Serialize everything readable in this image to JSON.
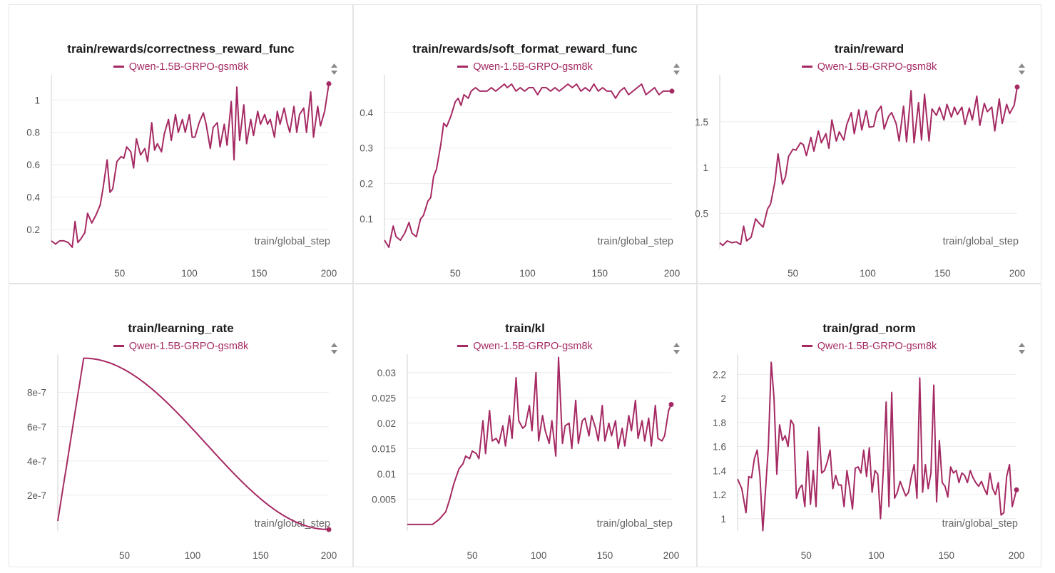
{
  "colors": {
    "series": "#a52a63",
    "grid": "#ececec",
    "border": "#e4e4e4"
  },
  "chart_data": [
    {
      "type": "line",
      "title": "train/rewards/correctness_reward_func",
      "legend": "Qwen-1.5B-GRPO-gsm8k",
      "xlabel": "train/global_step",
      "xlim": [
        1,
        200
      ],
      "ylim": [
        0.09,
        1.12
      ],
      "xticks": [
        50,
        100,
        150,
        200
      ],
      "xtick_labels": [
        "50",
        "100",
        "150",
        "200"
      ],
      "yticks": [
        0.2,
        0.4,
        0.6,
        0.8,
        1.0
      ],
      "ytick_labels": [
        "0.2",
        "0.4",
        "0.6",
        "0.8",
        "1"
      ],
      "x": [
        1,
        4,
        7,
        10,
        13,
        16,
        18,
        20,
        22,
        25,
        27,
        30,
        33,
        36,
        38,
        41,
        43,
        45,
        48,
        51,
        53,
        55,
        58,
        60,
        62,
        65,
        68,
        70,
        73,
        75,
        77,
        80,
        82,
        85,
        87,
        90,
        92,
        95,
        97,
        100,
        102,
        104,
        107,
        110,
        112,
        115,
        117,
        120,
        122,
        125,
        127,
        130,
        132,
        134,
        136,
        139,
        141,
        144,
        146,
        149,
        151,
        154,
        156,
        158,
        161,
        163,
        165,
        168,
        170,
        172,
        175,
        177,
        179,
        182,
        184,
        187,
        189,
        192,
        194,
        197,
        200
      ],
      "y": [
        0.13,
        0.11,
        0.13,
        0.13,
        0.12,
        0.09,
        0.25,
        0.12,
        0.14,
        0.18,
        0.3,
        0.24,
        0.29,
        0.35,
        0.45,
        0.63,
        0.43,
        0.45,
        0.62,
        0.65,
        0.64,
        0.71,
        0.68,
        0.58,
        0.76,
        0.66,
        0.7,
        0.62,
        0.86,
        0.69,
        0.73,
        0.68,
        0.79,
        0.88,
        0.75,
        0.91,
        0.8,
        0.88,
        0.8,
        0.91,
        0.77,
        0.77,
        0.86,
        0.92,
        0.85,
        0.7,
        0.83,
        0.86,
        0.71,
        0.85,
        0.72,
        0.99,
        0.63,
        1.08,
        0.75,
        0.97,
        0.73,
        0.88,
        0.78,
        0.93,
        0.85,
        0.91,
        0.85,
        0.88,
        0.77,
        0.93,
        0.85,
        0.95,
        0.86,
        0.8,
        0.96,
        0.8,
        0.91,
        0.95,
        0.8,
        1.05,
        0.77,
        0.96,
        0.84,
        0.93,
        1.1
      ]
    },
    {
      "type": "line",
      "title": "train/rewards/soft_format_reward_func",
      "legend": "Qwen-1.5B-GRPO-gsm8k",
      "xlabel": "train/global_step",
      "xlim": [
        1,
        200
      ],
      "ylim": [
        0.02,
        0.49
      ],
      "xticks": [
        50,
        100,
        150,
        200
      ],
      "xtick_labels": [
        "50",
        "100",
        "150",
        "200"
      ],
      "yticks": [
        0.1,
        0.2,
        0.3,
        0.4
      ],
      "ytick_labels": [
        "0.1",
        "0.2",
        "0.3",
        "0.4"
      ],
      "x": [
        1,
        4,
        7,
        9,
        12,
        15,
        18,
        20,
        23,
        26,
        28,
        31,
        33,
        35,
        37,
        40,
        42,
        44,
        47,
        50,
        52,
        54,
        56,
        59,
        61,
        64,
        67,
        69,
        72,
        75,
        78,
        81,
        84,
        86,
        89,
        92,
        95,
        98,
        101,
        104,
        107,
        110,
        113,
        116,
        119,
        122,
        125,
        128,
        131,
        134,
        137,
        140,
        143,
        146,
        149,
        152,
        155,
        158,
        161,
        164,
        167,
        170,
        173,
        176,
        179,
        182,
        185,
        188,
        191,
        194,
        197,
        200
      ],
      "y": [
        0.04,
        0.02,
        0.08,
        0.05,
        0.04,
        0.06,
        0.09,
        0.06,
        0.05,
        0.1,
        0.11,
        0.15,
        0.16,
        0.22,
        0.24,
        0.31,
        0.37,
        0.36,
        0.39,
        0.43,
        0.44,
        0.42,
        0.45,
        0.44,
        0.46,
        0.47,
        0.46,
        0.46,
        0.46,
        0.47,
        0.46,
        0.47,
        0.48,
        0.47,
        0.48,
        0.46,
        0.47,
        0.46,
        0.47,
        0.47,
        0.45,
        0.47,
        0.47,
        0.46,
        0.47,
        0.46,
        0.47,
        0.48,
        0.47,
        0.48,
        0.46,
        0.47,
        0.46,
        0.48,
        0.46,
        0.47,
        0.46,
        0.46,
        0.44,
        0.46,
        0.47,
        0.45,
        0.46,
        0.47,
        0.48,
        0.45,
        0.46,
        0.47,
        0.45,
        0.46,
        0.46,
        0.46
      ]
    },
    {
      "type": "line",
      "title": "train/reward",
      "legend": "Qwen-1.5B-GRPO-gsm8k",
      "xlabel": "train/global_step",
      "xlim": [
        1,
        200
      ],
      "ylim": [
        0.13,
        1.95
      ],
      "xticks": [
        50,
        100,
        150,
        200
      ],
      "xtick_labels": [
        "50",
        "100",
        "150",
        "200"
      ],
      "yticks": [
        0.5,
        1.0,
        1.5
      ],
      "ytick_labels": [
        "0.5",
        "1",
        "1.5"
      ],
      "x": [
        1,
        3,
        6,
        9,
        12,
        15,
        17,
        19,
        22,
        25,
        27,
        30,
        33,
        35,
        38,
        40,
        43,
        45,
        47,
        50,
        52,
        55,
        57,
        59,
        62,
        64,
        67,
        69,
        72,
        74,
        76,
        79,
        81,
        84,
        86,
        89,
        91,
        94,
        96,
        99,
        101,
        104,
        106,
        109,
        111,
        114,
        116,
        119,
        121,
        124,
        126,
        129,
        131,
        134,
        136,
        138,
        141,
        143,
        146,
        148,
        151,
        153,
        156,
        158,
        160,
        163,
        165,
        168,
        170,
        173,
        175,
        178,
        180,
        183,
        185,
        188,
        190,
        193,
        195,
        198,
        200
      ],
      "y": [
        0.18,
        0.15,
        0.2,
        0.18,
        0.19,
        0.16,
        0.36,
        0.2,
        0.24,
        0.44,
        0.4,
        0.35,
        0.55,
        0.6,
        0.85,
        1.15,
        0.82,
        0.9,
        1.12,
        1.2,
        1.19,
        1.27,
        1.25,
        1.13,
        1.33,
        1.18,
        1.4,
        1.27,
        1.37,
        1.21,
        1.52,
        1.29,
        1.39,
        1.3,
        1.47,
        1.6,
        1.37,
        1.63,
        1.41,
        1.62,
        1.44,
        1.45,
        1.6,
        1.67,
        1.42,
        1.56,
        1.6,
        1.48,
        1.29,
        1.67,
        1.28,
        1.84,
        1.27,
        1.71,
        1.3,
        1.8,
        1.29,
        1.64,
        1.57,
        1.66,
        1.52,
        1.69,
        1.55,
        1.66,
        1.58,
        1.66,
        1.47,
        1.65,
        1.52,
        1.78,
        1.46,
        1.7,
        1.61,
        1.66,
        1.4,
        1.75,
        1.48,
        1.69,
        1.59,
        1.68,
        1.88
      ]
    },
    {
      "type": "line",
      "title": "train/learning_rate",
      "legend": "Qwen-1.5B-GRPO-gsm8k",
      "xlabel": "train/global_step",
      "xlim": [
        1,
        200
      ],
      "ylim": [
        0,
        9.9e-07
      ],
      "xticks": [
        50,
        100,
        150,
        200
      ],
      "xtick_labels": [
        "50",
        "100",
        "150",
        "200"
      ],
      "yticks": [
        2e-07,
        4e-07,
        6e-07,
        8e-07
      ],
      "ytick_labels": [
        "2e-7",
        "4e-7",
        "6e-7",
        "8e-7"
      ],
      "warmup_steps": 20,
      "peak_lr": 1e-06
    },
    {
      "type": "line",
      "title": "train/kl",
      "legend": "Qwen-1.5B-GRPO-gsm8k",
      "xlabel": "train/global_step",
      "xlim": [
        1,
        200
      ],
      "ylim": [
        -0.001,
        0.0325
      ],
      "xticks": [
        50,
        100,
        150,
        200
      ],
      "xtick_labels": [
        "50",
        "100",
        "150",
        "200"
      ],
      "yticks": [
        0.005,
        0.01,
        0.015,
        0.02,
        0.025,
        0.03
      ],
      "ytick_labels": [
        "0.005",
        "0.01",
        "0.015",
        "0.02",
        "0.025",
        "0.03"
      ],
      "x": [
        1,
        10,
        20,
        25,
        30,
        33,
        36,
        40,
        43,
        45,
        48,
        50,
        53,
        55,
        58,
        60,
        63,
        65,
        68,
        70,
        73,
        75,
        78,
        80,
        83,
        85,
        88,
        90,
        93,
        95,
        98,
        100,
        103,
        105,
        108,
        110,
        113,
        115,
        118,
        120,
        123,
        125,
        128,
        130,
        133,
        135,
        138,
        140,
        143,
        145,
        148,
        150,
        153,
        155,
        158,
        160,
        163,
        165,
        168,
        170,
        173,
        175,
        178,
        180,
        183,
        185,
        188,
        190,
        193,
        195,
        198,
        200
      ],
      "y": [
        0.0,
        0.0,
        0.0,
        0.001,
        0.0025,
        0.005,
        0.008,
        0.011,
        0.012,
        0.0135,
        0.013,
        0.0145,
        0.014,
        0.013,
        0.0205,
        0.014,
        0.0225,
        0.0165,
        0.017,
        0.016,
        0.0195,
        0.0155,
        0.0215,
        0.017,
        0.029,
        0.0205,
        0.019,
        0.0195,
        0.0235,
        0.0185,
        0.03,
        0.0165,
        0.0215,
        0.0185,
        0.016,
        0.0205,
        0.0135,
        0.033,
        0.016,
        0.0195,
        0.02,
        0.015,
        0.0245,
        0.016,
        0.0205,
        0.021,
        0.0175,
        0.0215,
        0.019,
        0.0165,
        0.0235,
        0.0165,
        0.02,
        0.0175,
        0.0205,
        0.015,
        0.019,
        0.0155,
        0.0215,
        0.0185,
        0.0245,
        0.017,
        0.0205,
        0.0165,
        0.021,
        0.0155,
        0.0235,
        0.017,
        0.0165,
        0.0175,
        0.0225,
        0.0237
      ]
    },
    {
      "type": "line",
      "title": "train/grad_norm",
      "legend": "Qwen-1.5B-GRPO-gsm8k",
      "xlabel": "train/global_step",
      "xlim": [
        1,
        200
      ],
      "ylim": [
        0.91,
        2.32
      ],
      "xticks": [
        50,
        100,
        150,
        200
      ],
      "xtick_labels": [
        "50",
        "100",
        "150",
        "200"
      ],
      "yticks": [
        1.0,
        1.2,
        1.4,
        1.6,
        1.8,
        2.0,
        2.2
      ],
      "ytick_labels": [
        "1",
        "1.2",
        "1.4",
        "1.6",
        "1.8",
        "2",
        "2.2"
      ],
      "x": [
        1,
        4,
        7,
        9,
        11,
        13,
        15,
        17,
        19,
        21,
        23,
        25,
        27,
        29,
        31,
        33,
        35,
        37,
        39,
        41,
        43,
        45,
        47,
        49,
        51,
        53,
        55,
        57,
        59,
        61,
        63,
        65,
        67,
        69,
        71,
        73,
        75,
        77,
        79,
        81,
        83,
        85,
        87,
        89,
        91,
        93,
        95,
        97,
        99,
        101,
        103,
        105,
        107,
        109,
        111,
        113,
        115,
        117,
        119,
        121,
        123,
        125,
        127,
        129,
        131,
        133,
        135,
        137,
        139,
        141,
        143,
        145,
        147,
        149,
        151,
        153,
        155,
        157,
        159,
        161,
        163,
        165,
        167,
        169,
        171,
        173,
        175,
        177,
        179,
        181,
        183,
        185,
        187,
        189,
        191,
        193,
        195,
        197,
        200
      ],
      "y": [
        1.33,
        1.25,
        1.05,
        1.35,
        1.34,
        1.5,
        1.57,
        1.35,
        0.9,
        1.25,
        1.6,
        2.3,
        2.0,
        1.37,
        1.78,
        1.65,
        1.69,
        1.6,
        1.82,
        1.78,
        1.17,
        1.25,
        1.28,
        1.1,
        1.56,
        1.12,
        1.4,
        1.1,
        1.76,
        1.38,
        1.4,
        1.47,
        1.57,
        1.25,
        1.36,
        1.28,
        1.28,
        1.1,
        1.4,
        1.25,
        1.08,
        1.42,
        1.43,
        1.38,
        1.57,
        1.35,
        1.59,
        1.22,
        1.4,
        1.37,
        1.0,
        1.4,
        1.97,
        1.1,
        2.05,
        1.17,
        1.22,
        1.31,
        1.25,
        1.19,
        1.22,
        1.35,
        1.45,
        1.17,
        2.17,
        1.22,
        1.45,
        1.25,
        1.38,
        2.11,
        1.14,
        1.65,
        1.3,
        1.27,
        1.18,
        1.43,
        1.38,
        1.4,
        1.3,
        1.38,
        1.36,
        1.3,
        1.4,
        1.34,
        1.3,
        1.27,
        1.31,
        1.25,
        1.2,
        1.38,
        1.25,
        1.2,
        1.3,
        1.03,
        1.05,
        1.35,
        1.45,
        1.1,
        1.24
      ]
    }
  ]
}
